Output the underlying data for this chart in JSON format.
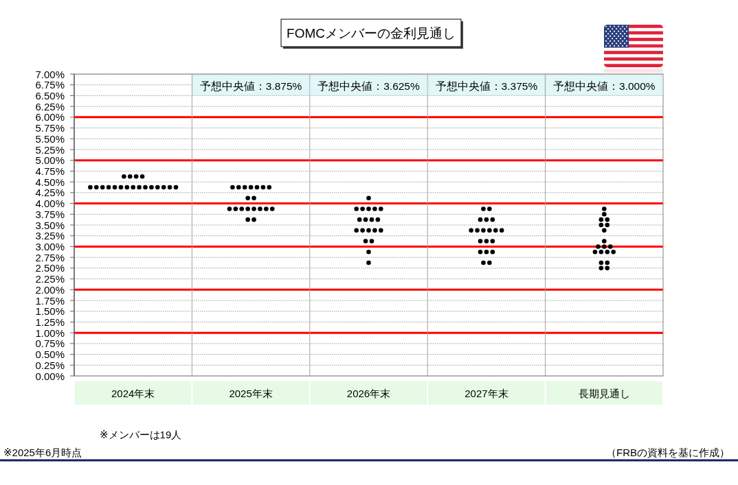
{
  "chart_data": {
    "type": "scatter",
    "title": "FOMCメンバーの金利見通し",
    "categories": [
      "2024年末",
      "2025年末",
      "2026年末",
      "2027年末",
      "長期見通し"
    ],
    "series": [
      {
        "color": "#000000",
        "x": [
          "2024年末",
          "2024年末",
          "2024年末",
          "2024年末",
          "2024年末",
          "2024年末",
          "2024年末",
          "2024年末",
          "2024年末",
          "2024年末",
          "2024年末",
          "2024年末",
          "2024年末",
          "2024年末",
          "2024年末",
          "2024年末",
          "2024年末",
          "2024年末",
          "2024年末",
          "2025年末",
          "2025年末",
          "2025年末",
          "2025年末",
          "2025年末",
          "2025年末",
          "2025年末",
          "2025年末",
          "2025年末",
          "2025年末",
          "2025年末",
          "2025年末",
          "2025年末",
          "2025年末",
          "2025年末",
          "2025年末",
          "2025年末",
          "2025年末",
          "2025年末",
          "2026年末",
          "2026年末",
          "2026年末",
          "2026年末",
          "2026年末",
          "2026年末",
          "2026年末",
          "2026年末",
          "2026年末",
          "2026年末",
          "2026年末",
          "2026年末",
          "2026年末",
          "2026年末",
          "2026年末",
          "2026年末",
          "2026年末",
          "2026年末",
          "2026年末",
          "2027年末",
          "2027年末",
          "2027年末",
          "2027年末",
          "2027年末",
          "2027年末",
          "2027年末",
          "2027年末",
          "2027年末",
          "2027年末",
          "2027年末",
          "2027年末",
          "2027年末",
          "2027年末",
          "2027年末",
          "2027年末",
          "2027年末",
          "2027年末",
          "2027年末",
          "長期見通し",
          "長期見通し",
          "長期見通し",
          "長期見通し",
          "長期見通し",
          "長期見通し",
          "長期見通し",
          "長期見通し",
          "長期見通し",
          "長期見通し",
          "長期見通し",
          "長期見通し",
          "長期見通し",
          "長期見通し",
          "長期見通し",
          "長期見通し",
          "長期見通し",
          "長期見通し",
          "長期見通し"
        ],
        "values": [
          4.625,
          4.625,
          4.625,
          4.625,
          4.375,
          4.375,
          4.375,
          4.375,
          4.375,
          4.375,
          4.375,
          4.375,
          4.375,
          4.375,
          4.375,
          4.375,
          4.375,
          4.375,
          4.375,
          4.375,
          4.375,
          4.375,
          4.375,
          4.375,
          4.375,
          4.375,
          4.125,
          4.125,
          3.875,
          3.875,
          3.875,
          3.875,
          3.875,
          3.875,
          3.875,
          3.875,
          3.625,
          3.625,
          4.125,
          3.875,
          3.875,
          3.875,
          3.875,
          3.875,
          3.625,
          3.625,
          3.625,
          3.625,
          3.375,
          3.375,
          3.375,
          3.375,
          3.375,
          3.125,
          3.125,
          2.875,
          2.625,
          3.875,
          3.875,
          3.625,
          3.625,
          3.625,
          3.375,
          3.375,
          3.375,
          3.375,
          3.375,
          3.375,
          3.125,
          3.125,
          3.125,
          2.875,
          2.875,
          2.875,
          2.625,
          2.625,
          3.875,
          3.75,
          3.625,
          3.625,
          3.5,
          3.5,
          3.375,
          3.125,
          3.0,
          3.0,
          3.0,
          2.875,
          2.875,
          2.875,
          2.875,
          2.625,
          2.625,
          2.5,
          2.5
        ]
      }
    ],
    "ylim": [
      0,
      7
    ],
    "yticks": [
      {
        "value": 0,
        "label": "0.00%"
      },
      {
        "value": 0.25,
        "label": "0.25%"
      },
      {
        "value": 0.5,
        "label": "0.50%"
      },
      {
        "value": 0.75,
        "label": "0.75%"
      },
      {
        "value": 1,
        "label": "1.00%"
      },
      {
        "value": 1.25,
        "label": "1.25%"
      },
      {
        "value": 1.5,
        "label": "1.50%"
      },
      {
        "value": 1.75,
        "label": "1.75%"
      },
      {
        "value": 2,
        "label": "2.00%"
      },
      {
        "value": 2.25,
        "label": "2.25%"
      },
      {
        "value": 2.5,
        "label": "2.50%"
      },
      {
        "value": 2.75,
        "label": "2.75%"
      },
      {
        "value": 3,
        "label": "3.00%"
      },
      {
        "value": 3.25,
        "label": "3.25%"
      },
      {
        "value": 3.5,
        "label": "3.50%"
      },
      {
        "value": 3.75,
        "label": "3.75%"
      },
      {
        "value": 4,
        "label": "4.00%"
      },
      {
        "value": 4.25,
        "label": "4.25%"
      },
      {
        "value": 4.5,
        "label": "4.50%"
      },
      {
        "value": 4.75,
        "label": "4.75%"
      },
      {
        "value": 5,
        "label": "5.00%"
      },
      {
        "value": 5.25,
        "label": "5.25%"
      },
      {
        "value": 5.5,
        "label": "5.50%"
      },
      {
        "value": 5.75,
        "label": "5.75%"
      },
      {
        "value": 6,
        "label": "6.00%"
      },
      {
        "value": 6.25,
        "label": "6.25%"
      },
      {
        "value": 6.5,
        "label": "6.50%"
      },
      {
        "value": 6.75,
        "label": "6.75%"
      },
      {
        "value": 7,
        "label": "7.00%"
      }
    ],
    "grid": "y",
    "marker": "circle",
    "annotations": [
      "予想中央値：3.875%",
      "予想中央値：3.625%",
      "予想中央値：3.375%",
      "予想中央値：3.000%",
      "※メンバーは19人",
      "※2025年6月時点",
      "（FRBの資料を基に作成）"
    ]
  }
}
